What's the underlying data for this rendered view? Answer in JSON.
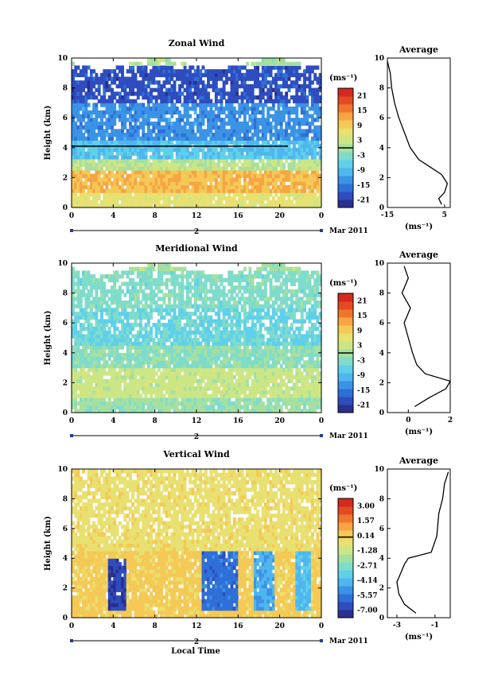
{
  "figure": {
    "xlabel": "Local Time",
    "date_label": "Mar 2011",
    "day_label": "2"
  },
  "chart_data": [
    {
      "type": "heatmap",
      "title": "Zonal Wind",
      "ylabel": "Height (km)",
      "xlim": [
        0,
        24
      ],
      "ylim": [
        0,
        10
      ],
      "x_ticks": [
        "0",
        "4",
        "8",
        "12",
        "16",
        "20",
        "0"
      ],
      "y_ticks": [
        "0",
        "2",
        "4",
        "6",
        "8",
        "10"
      ],
      "colorbar": {
        "unit": "(ms⁻¹)",
        "ticks": [
          "21",
          "15",
          "9",
          "3",
          "-3",
          "-9",
          "-15",
          "-21"
        ],
        "range": [
          -24,
          24
        ],
        "zero_line": 0
      },
      "reference_line_height_km": 4.1,
      "data_bands": [
        {
          "z0": 0,
          "z1": 1.0,
          "v": 6
        },
        {
          "z0": 1.0,
          "z1": 2.5,
          "v": 11
        },
        {
          "z0": 2.5,
          "z1": 3.2,
          "v": 2
        },
        {
          "z0": 3.2,
          "z1": 4.5,
          "v": -8
        },
        {
          "z0": 4.5,
          "z1": 7.0,
          "v": -13
        },
        {
          "z0": 7.0,
          "z1": 9.5,
          "v": -19
        }
      ],
      "profile": {
        "title": "Average",
        "xlabel": "(ms⁻¹)",
        "xlim": [
          -15,
          7
        ],
        "x_ticks": [
          "-15",
          "5"
        ],
        "y_ticks": [
          "0",
          "2",
          "4",
          "6",
          "8",
          "10"
        ],
        "points": [
          [
            4,
            0.2
          ],
          [
            3,
            0.6
          ],
          [
            5,
            1.0
          ],
          [
            6,
            1.6
          ],
          [
            4,
            2.2
          ],
          [
            0,
            2.7
          ],
          [
            -4,
            3.2
          ],
          [
            -7,
            4.0
          ],
          [
            -9,
            5.0
          ],
          [
            -11,
            6.0
          ],
          [
            -12.5,
            7.0
          ],
          [
            -13.5,
            8.0
          ],
          [
            -14,
            9.0
          ],
          [
            -15,
            9.8
          ]
        ]
      }
    },
    {
      "type": "heatmap",
      "title": "Meridional Wind",
      "ylabel": "Height (km)",
      "xlim": [
        0,
        24
      ],
      "ylim": [
        0,
        10
      ],
      "x_ticks": [
        "0",
        "4",
        "8",
        "12",
        "16",
        "20",
        "0"
      ],
      "y_ticks": [
        "0",
        "2",
        "4",
        "6",
        "8",
        "10"
      ],
      "colorbar": {
        "unit": "(ms⁻¹)",
        "ticks": [
          "21",
          "15",
          "9",
          "3",
          "-3",
          "-9",
          "-15",
          "-21"
        ],
        "range": [
          -24,
          24
        ],
        "zero_line": 0
      },
      "data_bands": [
        {
          "z0": 0,
          "z1": 1.0,
          "v": -1
        },
        {
          "z0": 1.0,
          "z1": 2.8,
          "v": 3
        },
        {
          "z0": 2.8,
          "z1": 4.5,
          "v": -2
        },
        {
          "z0": 4.5,
          "z1": 7.0,
          "v": -5
        },
        {
          "z0": 7.0,
          "z1": 9.5,
          "v": -3
        }
      ],
      "profile": {
        "title": "Average",
        "xlabel": "(ms⁻¹)",
        "xlim": [
          -1,
          2
        ],
        "x_ticks": [
          "0",
          "2"
        ],
        "y_ticks": [
          "0",
          "2",
          "4",
          "6",
          "8",
          "10"
        ],
        "points": [
          [
            0.3,
            0.4
          ],
          [
            1.0,
            1.0
          ],
          [
            1.8,
            1.6
          ],
          [
            2.0,
            2.1
          ],
          [
            0.8,
            2.6
          ],
          [
            0.4,
            3.2
          ],
          [
            0.2,
            4.0
          ],
          [
            0.0,
            5.0
          ],
          [
            -0.2,
            6.0
          ],
          [
            0.1,
            7.0
          ],
          [
            -0.3,
            8.0
          ],
          [
            0.0,
            9.0
          ],
          [
            -0.2,
            9.8
          ]
        ]
      }
    },
    {
      "type": "heatmap",
      "title": "Vertical Wind",
      "ylabel": "Height (km)",
      "xlim": [
        0,
        24
      ],
      "ylim": [
        0,
        10
      ],
      "x_ticks": [
        "0",
        "4",
        "8",
        "12",
        "16",
        "20",
        "0"
      ],
      "y_ticks": [
        "0",
        "2",
        "4",
        "6",
        "8",
        "10"
      ],
      "colorbar": {
        "unit": "(ms⁻¹)",
        "ticks": [
          "3.00",
          "1.57",
          "0.14",
          "-1.28",
          "-2.71",
          "-4.14",
          "-5.57",
          "-7.00"
        ],
        "range": [
          -7.7,
          3.7
        ],
        "zero_line": 0
      },
      "data_bands": [
        {
          "z0": 0,
          "z1": 4.5,
          "v": 0.2
        },
        {
          "z0": 4.5,
          "z1": 10,
          "v": -0.4
        }
      ],
      "downdraft_blocks": [
        {
          "t0": 3.3,
          "t1": 5.2,
          "z0": 0.4,
          "z1": 4.0,
          "v": -6.8
        },
        {
          "t0": 12.3,
          "t1": 15.8,
          "z0": 0.4,
          "z1": 4.5,
          "v": -5.8
        },
        {
          "t0": 17.5,
          "t1": 19.5,
          "z0": 0.4,
          "z1": 4.5,
          "v": -4.5
        },
        {
          "t0": 21.5,
          "t1": 22.8,
          "z0": 0.4,
          "z1": 4.3,
          "v": -4.0
        }
      ],
      "profile": {
        "title": "Average",
        "xlabel": "(ms⁻¹)",
        "xlim": [
          -3.5,
          -0.2
        ],
        "x_ticks": [
          "-3",
          "-1"
        ],
        "y_ticks": [
          "0",
          "2",
          "4",
          "6",
          "8",
          "10"
        ],
        "points": [
          [
            -2.0,
            0.3
          ],
          [
            -2.6,
            0.9
          ],
          [
            -2.9,
            1.6
          ],
          [
            -3.0,
            2.4
          ],
          [
            -2.8,
            3.0
          ],
          [
            -2.6,
            3.6
          ],
          [
            -2.4,
            4.0
          ],
          [
            -1.2,
            4.4
          ],
          [
            -0.9,
            5.5
          ],
          [
            -0.8,
            7.0
          ],
          [
            -0.6,
            8.0
          ],
          [
            -0.5,
            9.0
          ],
          [
            -0.3,
            9.8
          ]
        ]
      }
    }
  ]
}
